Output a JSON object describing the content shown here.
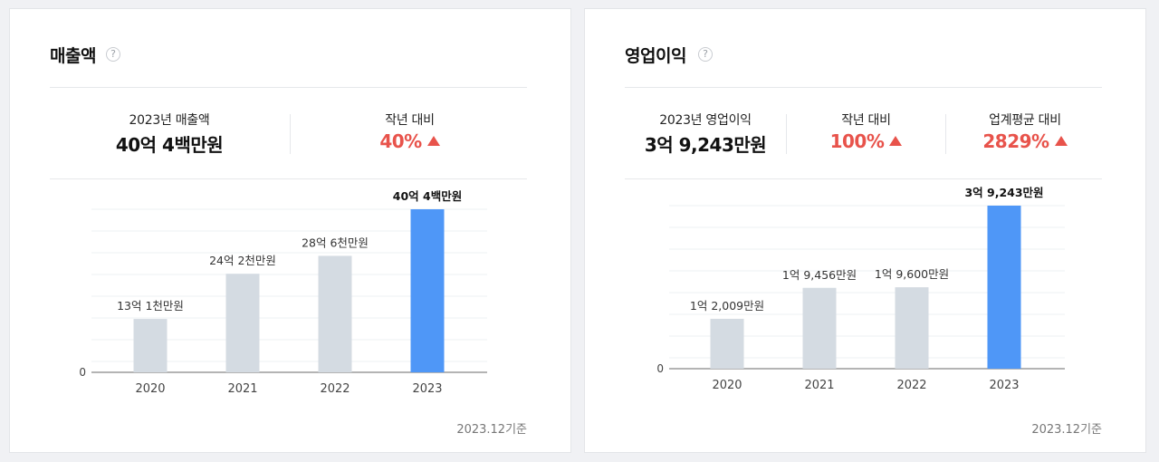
{
  "cards": [
    {
      "title": "매출액",
      "stats": [
        {
          "label": "2023년 매출액",
          "value": "40억 4백만원"
        },
        {
          "label": "작년 대비",
          "value": "40%"
        }
      ],
      "footer": "2023.12기준",
      "chart_data": {
        "type": "bar",
        "categories": [
          "2020",
          "2021",
          "2022",
          "2023"
        ],
        "values": [
          1310000000,
          2420000000,
          2860000000,
          4004000000
        ],
        "data_labels": [
          "13억 1천만원",
          "24억 2천만원",
          "28억 6천만원",
          "40억 4백만원"
        ],
        "ylim": [
          0,
          4004000000
        ],
        "y_tick_labels": [
          "0"
        ],
        "highlight_index": 3,
        "colors": {
          "bar": "#d4dbe2",
          "highlight": "#4f97f7"
        },
        "grid": true
      }
    },
    {
      "title": "영업이익",
      "stats": [
        {
          "label": "2023년 영업이익",
          "value": "3억 9,243만원"
        },
        {
          "label": "작년 대비",
          "value": "100%"
        },
        {
          "label": "업계평균 대비",
          "value": "2829%"
        }
      ],
      "footer": "2023.12기준",
      "chart_data": {
        "type": "bar",
        "categories": [
          "2020",
          "2021",
          "2022",
          "2023"
        ],
        "values": [
          120090000,
          194560000,
          196000000,
          392430000
        ],
        "data_labels": [
          "1억 2,009만원",
          "1억 9,456만원",
          "1억 9,600만원",
          "3억 9,243만원"
        ],
        "ylim": [
          0,
          392430000
        ],
        "y_tick_labels": [
          "0"
        ],
        "highlight_index": 3,
        "colors": {
          "bar": "#d4dbe2",
          "highlight": "#4f97f7"
        },
        "grid": true
      }
    }
  ]
}
